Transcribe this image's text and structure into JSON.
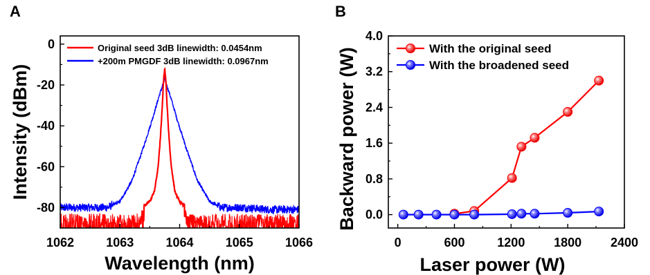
{
  "chart_data": [
    {
      "panel": "A",
      "type": "line",
      "title": "",
      "xlabel": "Wavelength (nm)",
      "ylabel": "Intensity (dBm)",
      "xlim": [
        1062,
        1066
      ],
      "ylim": [
        -90,
        4
      ],
      "xticks": [
        "1062",
        "1063",
        "1064",
        "1065",
        "1066"
      ],
      "yticks": [
        "0",
        "-20",
        "-40",
        "-60",
        "-80"
      ],
      "grid": false,
      "legend_position": "top-right",
      "series": [
        {
          "name": "Original seed 3dB linewidth: 0.0454nm",
          "color": "#ff0000",
          "x": [
            1063.1,
            1063.35,
            1063.5,
            1063.58,
            1063.64,
            1063.68,
            1063.71,
            1063.73,
            1063.75,
            1063.77,
            1063.79,
            1063.82,
            1063.86,
            1063.92,
            1064.0,
            1064.12,
            1064.3
          ],
          "y": [
            -82,
            -80,
            -77,
            -72,
            -60,
            -45,
            -30,
            -18,
            -12,
            -18,
            -30,
            -45,
            -60,
            -72,
            -77,
            -80,
            -82
          ],
          "noise_floor": -83
        },
        {
          "name": "+200m PMGDF 3dB linewidth: 0.0967nm",
          "color": "#0000ff",
          "x": [
            1062.0,
            1062.4,
            1062.8,
            1063.0,
            1063.2,
            1063.4,
            1063.55,
            1063.65,
            1063.75,
            1063.85,
            1063.95,
            1064.1,
            1064.3,
            1064.5,
            1064.7,
            1065.1,
            1065.5,
            1066.0
          ],
          "y": [
            -80,
            -80,
            -80,
            -77,
            -67,
            -50,
            -36,
            -26,
            -17,
            -26,
            -36,
            -50,
            -67,
            -77,
            -80,
            -80,
            -81,
            -81
          ],
          "noise_floor": -80
        }
      ]
    },
    {
      "panel": "B",
      "type": "line",
      "title": "",
      "xlabel": "Laser power (W)",
      "ylabel": "Backward power (W)",
      "xlim": [
        -100,
        2400
      ],
      "ylim": [
        -0.3,
        4.0
      ],
      "xticks": [
        "0",
        "600",
        "1200",
        "1800",
        "2400"
      ],
      "yticks": [
        "0.0",
        "0.8",
        "1.6",
        "2.4",
        "3.2",
        "4.0"
      ],
      "grid": false,
      "legend_position": "top-left",
      "series": [
        {
          "name": "With the original seed",
          "color": "#ff0000",
          "x": [
            600,
            810,
            1210,
            1310,
            1450,
            1800,
            2130
          ],
          "y": [
            0.02,
            0.08,
            0.82,
            1.52,
            1.72,
            2.3,
            3.0
          ]
        },
        {
          "name": "With the broadened seed",
          "color": "#0000ff",
          "x": [
            60,
            220,
            410,
            600,
            810,
            1210,
            1310,
            1450,
            1800,
            2130
          ],
          "y": [
            0.0,
            0.0,
            0.0,
            0.0,
            0.0,
            0.01,
            0.02,
            0.02,
            0.04,
            0.07
          ]
        }
      ]
    }
  ]
}
